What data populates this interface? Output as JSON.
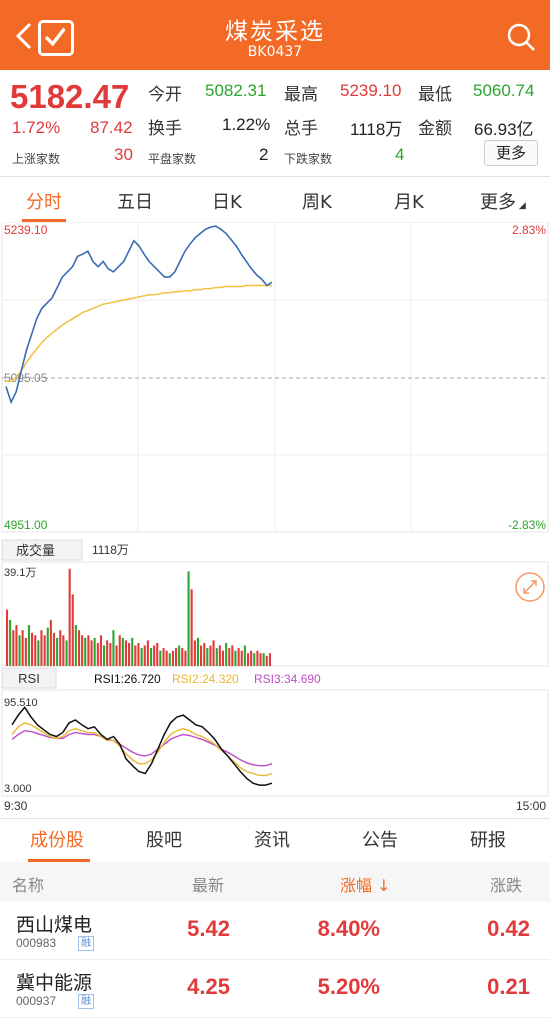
{
  "header": {
    "title": "煤炭采选",
    "code": "BK0437",
    "back_icon": "chevron-left-icon",
    "check_icon": "checkbox-checked-icon",
    "search_icon": "search-icon"
  },
  "quote": {
    "price": "5182.47",
    "change_pct": "1.72%",
    "change": "87.42",
    "open_label": "今开",
    "open": "5082.31",
    "high_label": "最高",
    "high": "5239.10",
    "low_label": "最低",
    "low": "5060.74",
    "turnover_label": "换手",
    "turnover": "1.22%",
    "volume_label": "总手",
    "volume": "1118万",
    "amount_label": "金额",
    "amount": "66.93亿",
    "up_label": "上涨家数",
    "up": "30",
    "flat_label": "平盘家数",
    "flat": "2",
    "down_label": "下跌家数",
    "down": "4",
    "more_label": "更多"
  },
  "tabs": [
    "分时",
    "五日",
    "日K",
    "周K",
    "月K",
    "更多"
  ],
  "chart": {
    "price_high": "5239.10",
    "price_mid": "5095.05",
    "price_low": "4951.00",
    "pct_high": "2.83%",
    "pct_low": "-2.83%",
    "volume_label": "成交量",
    "volume_value": "1118万",
    "volume_max": "39.1万",
    "rsi_label": "RSI",
    "rsi1": "RSI1:26.720",
    "rsi2": "RSI2:24.320",
    "rsi3": "RSI3:34.690",
    "rsi_top": "95.510",
    "rsi_bottom": "3.000",
    "time_start": "9:30",
    "time_end": "15:00",
    "colors": {
      "price": "#3a6bb5",
      "avg": "#f0c040",
      "up": "#e03a3a",
      "down": "#2ba52b",
      "rsi1": "#111111",
      "rsi2": "#e8b830",
      "rsi3": "#c04cc8"
    }
  },
  "chart_data": {
    "type": "line",
    "price_series": [
      5085,
      5070,
      5080,
      5100,
      5120,
      5135,
      5150,
      5160,
      5165,
      5170,
      5180,
      5190,
      5195,
      5200,
      5210,
      5212,
      5215,
      5205,
      5200,
      5205,
      5198,
      5195,
      5200,
      5205,
      5215,
      5225,
      5220,
      5212,
      5205,
      5200,
      5195,
      5190,
      5190,
      5195,
      5205,
      5215,
      5222,
      5228,
      5232,
      5236,
      5238,
      5239,
      5236,
      5232,
      5226,
      5220,
      5212,
      5205,
      5198,
      5192,
      5188,
      5182,
      5185
    ],
    "avg_series": [
      5090,
      5090,
      5094,
      5100,
      5108,
      5115,
      5121,
      5127,
      5132,
      5136,
      5140,
      5144,
      5147,
      5150,
      5153,
      5156,
      5158,
      5160,
      5162,
      5164,
      5165,
      5166,
      5167,
      5168,
      5169,
      5170,
      5171,
      5172,
      5173,
      5173,
      5174,
      5175,
      5175,
      5176,
      5176,
      5177,
      5177,
      5178,
      5178,
      5179,
      5179,
      5180,
      5180,
      5181,
      5181,
      5181,
      5181,
      5182,
      5182,
      5182,
      5182,
      5182,
      5182
    ],
    "ylim": [
      4951.0,
      5239.1
    ],
    "volume_bars": [
      22,
      18,
      14,
      16,
      12,
      14,
      11,
      16,
      13,
      12,
      10,
      14,
      12,
      15,
      18,
      13,
      11,
      14,
      12,
      10,
      38,
      28,
      16,
      14,
      12,
      11,
      12,
      10,
      11,
      9,
      12,
      8,
      10,
      9,
      14,
      8,
      12,
      11,
      10,
      9,
      11,
      8,
      9,
      7,
      8,
      10,
      7,
      8,
      9,
      6,
      7,
      6,
      5,
      6,
      7,
      8,
      7,
      6,
      37,
      30,
      10,
      11,
      8,
      9,
      7,
      8,
      10,
      7,
      8,
      6,
      9,
      7,
      8,
      6,
      7,
      6,
      8,
      5,
      6,
      5,
      6,
      5,
      5,
      4,
      5
    ],
    "volume_ylim": [
      0,
      39.1
    ],
    "rsi_series": {
      "RSI1": [
        70,
        80,
        88,
        78,
        70,
        65,
        60,
        58,
        62,
        72,
        75,
        70,
        66,
        68,
        60,
        55,
        58,
        50,
        35,
        28,
        22,
        20,
        30,
        45,
        60,
        72,
        78,
        80,
        75,
        70,
        68,
        62,
        55,
        45,
        38,
        30,
        22,
        15,
        10,
        8,
        8,
        10
      ],
      "RSI2": [
        60,
        68,
        72,
        70,
        66,
        62,
        58,
        56,
        58,
        64,
        66,
        64,
        62,
        62,
        58,
        54,
        54,
        48,
        40,
        34,
        30,
        30,
        34,
        42,
        52,
        60,
        64,
        66,
        64,
        60,
        58,
        54,
        50,
        44,
        38,
        32,
        26,
        22,
        20,
        18,
        18,
        20
      ],
      "RSI3": [
        55,
        60,
        64,
        63,
        61,
        59,
        57,
        56,
        56,
        60,
        62,
        61,
        60,
        60,
        58,
        55,
        54,
        50,
        46,
        42,
        39,
        38,
        40,
        45,
        50,
        55,
        58,
        60,
        59,
        57,
        55,
        52,
        49,
        45,
        42,
        38,
        34,
        31,
        29,
        28,
        28,
        30
      ]
    },
    "rsi_ylim": [
      3.0,
      95.51
    ]
  },
  "sections": [
    "成份股",
    "股吧",
    "资讯",
    "公告",
    "研报"
  ],
  "table": {
    "headers": {
      "name": "名称",
      "latest": "最新",
      "change_pct": "涨幅 ↓",
      "change": "涨跌"
    },
    "rows": [
      {
        "name": "西山煤电",
        "code": "000983",
        "tag": "融",
        "latest": "5.42",
        "change_pct": "8.40%",
        "change": "0.42"
      },
      {
        "name": "冀中能源",
        "code": "000937",
        "tag": "融",
        "latest": "4.25",
        "change_pct": "5.20%",
        "change": "0.21"
      }
    ]
  }
}
